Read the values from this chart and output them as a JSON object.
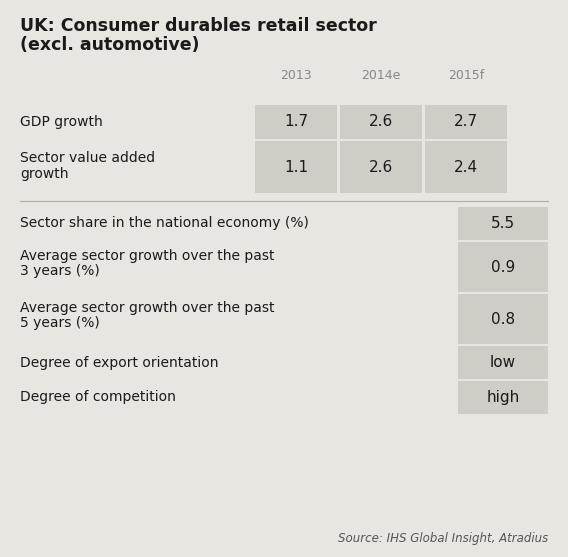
{
  "title_line1": "UK: Consumer durables retail sector",
  "title_line2": "(excl. automotive)",
  "bg_color": "#e8e6e1",
  "cell_bg": "#d0cdc6",
  "col_headers": [
    "2013",
    "2014e",
    "2015f"
  ],
  "row1_label": "GDP growth",
  "row1_values": [
    "1.7",
    "2.6",
    "2.7"
  ],
  "row2_label_line1": "Sector value added",
  "row2_label_line2": "growth",
  "row2_values": [
    "1.1",
    "2.6",
    "2.4"
  ],
  "section2_rows": [
    {
      "label_line1": "Sector share in the national economy (%)",
      "label_line2": null,
      "value": "5.5"
    },
    {
      "label_line1": "Average sector growth over the past",
      "label_line2": "3 years (%)",
      "value": "0.9"
    },
    {
      "label_line1": "Average sector growth over the past",
      "label_line2": "5 years (%)",
      "value": "0.8"
    },
    {
      "label_line1": "Degree of export orientation",
      "label_line2": null,
      "value": "low"
    },
    {
      "label_line1": "Degree of competition",
      "label_line2": null,
      "value": "high"
    }
  ],
  "source_text": "Source: IHS Global Insight, Atradius",
  "title_fontsize": 12.5,
  "label_fontsize": 10,
  "value_fontsize": 11,
  "header_fontsize": 9,
  "source_fontsize": 8.5
}
